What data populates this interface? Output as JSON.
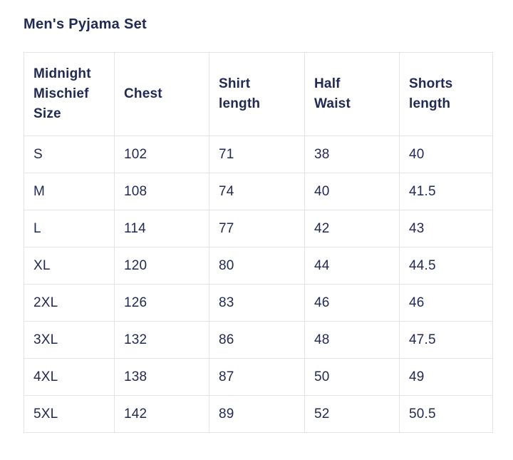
{
  "title": "Men's Pyjama Set",
  "colors": {
    "text": "#212a56",
    "border": "#e5e4e1",
    "background": "#ffffff"
  },
  "table": {
    "columns": [
      "Midnight\nMischief\nSize",
      "Chest",
      "Shirt\nlength",
      "Half\nWaist",
      "Shorts\nlength"
    ],
    "rows": [
      [
        "S",
        "102",
        "71",
        "38",
        "40"
      ],
      [
        "M",
        "108",
        "74",
        "40",
        "41.5"
      ],
      [
        "L",
        "114",
        "77",
        "42",
        "43"
      ],
      [
        "XL",
        "120",
        "80",
        "44",
        "44.5"
      ],
      [
        "2XL",
        "126",
        "83",
        "46",
        "46"
      ],
      [
        "3XL",
        "132",
        "86",
        "48",
        "47.5"
      ],
      [
        "4XL",
        "138",
        "87",
        "50",
        "49"
      ],
      [
        "5XL",
        "142",
        "89",
        "52",
        "50.5"
      ]
    ]
  }
}
